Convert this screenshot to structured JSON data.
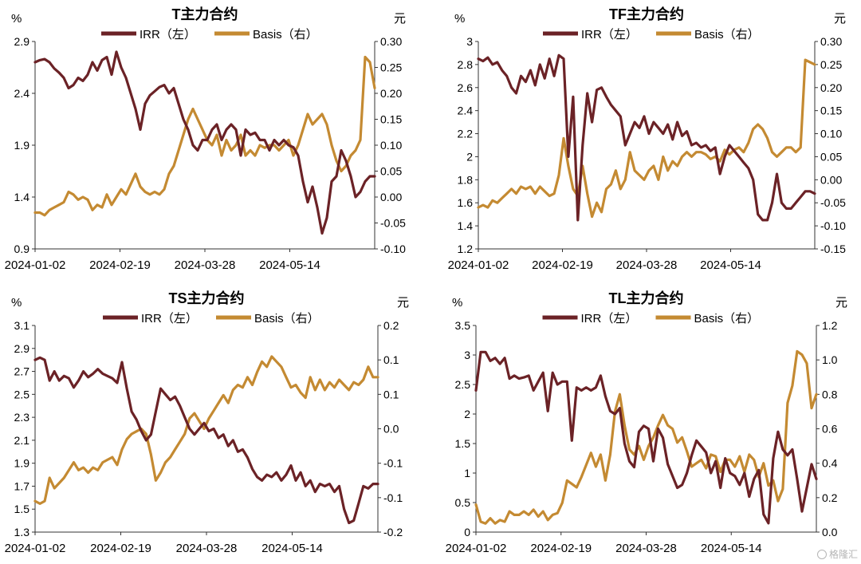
{
  "colors": {
    "irr": "#6b2226",
    "basis": "#c48a32",
    "axis": "#333333",
    "text": "#000000"
  },
  "watermark": "格隆汇",
  "chart_data": [
    {
      "type": "line",
      "title": "T主力合约",
      "left_unit": "%",
      "right_unit": "元",
      "x_tick_labels": [
        "2024-01-02",
        "2024-02-19",
        "2024-03-28",
        "2024-05-14"
      ],
      "y_left_ticks": [
        "0.9",
        "1.4",
        "1.9",
        "2.4",
        "2.9"
      ],
      "y_left_range": [
        0.9,
        2.9
      ],
      "y_right_ticks": [
        "-0.10",
        "-0.05",
        "0.00",
        "0.05",
        "0.10",
        "0.15",
        "0.20",
        "0.25",
        "0.30"
      ],
      "y_right_range": [
        -0.1,
        0.3
      ],
      "legend": [
        "IRR（左）",
        "Basis（右）"
      ],
      "series": [
        {
          "name": "IRR（左）",
          "axis": "left",
          "values": [
            2.7,
            2.72,
            2.73,
            2.7,
            2.64,
            2.6,
            2.55,
            2.45,
            2.48,
            2.55,
            2.52,
            2.58,
            2.7,
            2.62,
            2.72,
            2.75,
            2.58,
            2.8,
            2.65,
            2.55,
            2.4,
            2.25,
            2.05,
            2.3,
            2.38,
            2.42,
            2.46,
            2.48,
            2.4,
            2.45,
            2.3,
            2.15,
            2.05,
            1.9,
            1.85,
            1.95,
            1.95,
            2.05,
            2.1,
            1.95,
            2.05,
            2.1,
            2.05,
            1.8,
            2.05,
            2.0,
            2.02,
            1.95,
            1.95,
            1.85,
            1.95,
            1.9,
            1.95,
            1.9,
            1.88,
            1.8,
            1.55,
            1.35,
            1.5,
            1.3,
            1.05,
            1.2,
            1.55,
            1.6,
            1.85,
            1.75,
            1.6,
            1.4,
            1.45,
            1.55,
            1.6,
            1.6
          ]
        },
        {
          "name": "Basis（右）",
          "axis": "right",
          "values": [
            -0.03,
            -0.03,
            -0.035,
            -0.025,
            -0.02,
            -0.015,
            -0.01,
            0.01,
            0.005,
            -0.005,
            0.0,
            -0.005,
            -0.025,
            -0.015,
            -0.02,
            0.005,
            -0.015,
            0.0,
            0.015,
            0.005,
            0.025,
            0.045,
            0.02,
            0.01,
            0.005,
            0.01,
            0.005,
            0.015,
            0.045,
            0.06,
            0.09,
            0.12,
            0.15,
            0.17,
            0.15,
            0.13,
            0.11,
            0.1,
            0.12,
            0.08,
            0.11,
            0.09,
            0.1,
            0.12,
            0.08,
            0.09,
            0.08,
            0.1,
            0.095,
            0.1,
            0.1,
            0.09,
            0.1,
            0.11,
            0.08,
            0.1,
            0.13,
            0.16,
            0.14,
            0.15,
            0.16,
            0.14,
            0.1,
            0.07,
            0.05,
            0.06,
            0.08,
            0.09,
            0.11,
            0.27,
            0.26,
            0.21
          ]
        }
      ]
    },
    {
      "type": "line",
      "title": "TF主力合约",
      "left_unit": "%",
      "right_unit": "元",
      "x_tick_labels": [
        "2024-01-02",
        "2024-02-19",
        "2024-03-28",
        "2024-05-14"
      ],
      "y_left_ticks": [
        "1.2",
        "1.4",
        "1.6",
        "1.8",
        "2",
        "2.2",
        "2.4",
        "2.6",
        "2.8",
        "3"
      ],
      "y_left_range": [
        1.2,
        3.0
      ],
      "y_right_ticks": [
        "-0.15",
        "-0.10",
        "-0.05",
        "0.00",
        "0.05",
        "0.10",
        "0.15",
        "0.20",
        "0.25",
        "0.30"
      ],
      "y_right_range": [
        -0.15,
        0.3
      ],
      "legend": [
        "IRR（左）",
        "Basis（右）"
      ],
      "series": [
        {
          "name": "IRR（左）",
          "axis": "left",
          "values": [
            2.85,
            2.83,
            2.86,
            2.8,
            2.82,
            2.75,
            2.7,
            2.6,
            2.55,
            2.7,
            2.65,
            2.75,
            2.62,
            2.8,
            2.68,
            2.85,
            2.7,
            2.88,
            2.85,
            2.0,
            2.52,
            1.45,
            2.1,
            2.55,
            2.3,
            2.58,
            2.6,
            2.52,
            2.45,
            2.4,
            2.35,
            2.1,
            2.2,
            2.3,
            2.25,
            2.35,
            2.2,
            2.3,
            2.25,
            2.2,
            2.28,
            2.15,
            2.3,
            2.18,
            2.22,
            2.1,
            2.12,
            2.08,
            2.1,
            2.05,
            2.08,
            1.85,
            2.0,
            2.1,
            2.05,
            2.0,
            1.95,
            1.9,
            1.8,
            1.5,
            1.45,
            1.45,
            1.6,
            1.85,
            1.6,
            1.55,
            1.55,
            1.6,
            1.65,
            1.7,
            1.7,
            1.68
          ]
        },
        {
          "name": "Basis（右）",
          "axis": "right",
          "values": [
            -0.06,
            -0.055,
            -0.06,
            -0.045,
            -0.05,
            -0.04,
            -0.03,
            -0.02,
            -0.03,
            -0.015,
            -0.02,
            -0.015,
            -0.03,
            -0.015,
            -0.025,
            -0.035,
            -0.03,
            0.01,
            0.09,
            0.03,
            -0.02,
            -0.035,
            0.03,
            -0.03,
            -0.08,
            -0.05,
            -0.07,
            -0.02,
            -0.01,
            0.02,
            -0.02,
            0.0,
            0.06,
            0.02,
            0.01,
            0.0,
            0.02,
            0.03,
            0.0,
            0.05,
            0.02,
            0.04,
            0.03,
            0.05,
            0.06,
            0.05,
            0.06,
            0.06,
            0.055,
            0.045,
            0.05,
            0.04,
            0.065,
            0.055,
            0.065,
            0.07,
            0.06,
            0.08,
            0.11,
            0.12,
            0.11,
            0.09,
            0.06,
            0.05,
            0.06,
            0.07,
            0.07,
            0.06,
            0.07,
            0.26,
            0.255,
            0.25
          ]
        }
      ]
    },
    {
      "type": "line",
      "title": "TS主力合约",
      "left_unit": "%",
      "right_unit": "元",
      "x_tick_labels": [
        "2024-01-02",
        "2024-02-19",
        "2024-03-28",
        "2024-05-14"
      ],
      "y_left_ticks": [
        "1.3",
        "1.5",
        "1.7",
        "1.9",
        "2.1",
        "2.3",
        "2.5",
        "2.7",
        "2.9",
        "3.1"
      ],
      "y_left_range": [
        1.3,
        3.1
      ],
      "y_right_ticks": [
        "-0.2",
        "-0.1",
        "-0.1",
        "0.0",
        "0.1",
        "0.1",
        "0.2"
      ],
      "y_right_range": [
        -0.2,
        0.2
      ],
      "legend": [
        "IRR（左）",
        "Basis（右）"
      ],
      "series": [
        {
          "name": "IRR（左）",
          "axis": "left",
          "values": [
            2.8,
            2.82,
            2.8,
            2.62,
            2.7,
            2.62,
            2.66,
            2.64,
            2.56,
            2.62,
            2.7,
            2.65,
            2.68,
            2.72,
            2.68,
            2.66,
            2.64,
            2.6,
            2.78,
            2.55,
            2.35,
            2.28,
            2.18,
            2.1,
            2.15,
            2.35,
            2.55,
            2.5,
            2.45,
            2.48,
            2.4,
            2.3,
            2.2,
            2.15,
            2.2,
            2.25,
            2.18,
            2.2,
            2.12,
            2.15,
            2.05,
            2.1,
            2.0,
            2.02,
            1.95,
            1.85,
            1.78,
            1.75,
            1.8,
            1.78,
            1.82,
            1.75,
            1.8,
            1.88,
            1.75,
            1.82,
            1.7,
            1.75,
            1.65,
            1.72,
            1.7,
            1.72,
            1.65,
            1.7,
            1.5,
            1.38,
            1.4,
            1.55,
            1.7,
            1.68,
            1.72,
            1.72
          ]
        },
        {
          "name": "Basis（右）",
          "axis": "right",
          "values": [
            -0.14,
            -0.145,
            -0.14,
            -0.095,
            -0.115,
            -0.105,
            -0.095,
            -0.08,
            -0.065,
            -0.08,
            -0.075,
            -0.085,
            -0.075,
            -0.08,
            -0.065,
            -0.06,
            -0.055,
            -0.07,
            -0.04,
            -0.02,
            -0.01,
            -0.005,
            0.0,
            -0.01,
            -0.05,
            -0.1,
            -0.085,
            -0.065,
            -0.055,
            -0.04,
            -0.025,
            -0.01,
            0.02,
            0.03,
            0.015,
            0.0,
            0.02,
            0.035,
            0.05,
            0.065,
            0.05,
            0.075,
            0.085,
            0.08,
            0.1,
            0.085,
            0.11,
            0.13,
            0.12,
            0.14,
            0.13,
            0.12,
            0.1,
            0.08,
            0.085,
            0.07,
            0.06,
            0.1,
            0.075,
            0.095,
            0.075,
            0.09,
            0.08,
            0.095,
            0.085,
            0.075,
            0.09,
            0.085,
            0.095,
            0.12,
            0.1,
            0.1
          ]
        }
      ]
    },
    {
      "type": "line",
      "title": "TL主力合约",
      "left_unit": "%",
      "right_unit": "元",
      "x_tick_labels": [
        "2024-01-02",
        "2024-02-19",
        "2024-03-28",
        "2024-05-14"
      ],
      "y_left_ticks": [
        "0",
        "0.5",
        "1",
        "1.5",
        "2",
        "2.5",
        "3",
        "3.5"
      ],
      "y_left_range": [
        0,
        3.5
      ],
      "y_right_ticks": [
        "0.0",
        "0.2",
        "0.4",
        "0.6",
        "0.8",
        "1.0",
        "1.2"
      ],
      "y_right_range": [
        0,
        1.2
      ],
      "legend": [
        "IRR（左）",
        "Basis（右）"
      ],
      "series": [
        {
          "name": "IRR（左）",
          "axis": "left",
          "values": [
            2.4,
            3.05,
            3.05,
            2.9,
            2.95,
            2.85,
            2.95,
            2.6,
            2.65,
            2.6,
            2.62,
            2.65,
            2.4,
            2.55,
            2.7,
            2.05,
            2.7,
            2.5,
            2.55,
            2.55,
            1.55,
            2.45,
            2.4,
            2.45,
            2.4,
            2.45,
            2.65,
            2.3,
            2.05,
            2.0,
            2.1,
            1.5,
            1.2,
            1.1,
            1.7,
            1.8,
            1.75,
            1.2,
            1.75,
            1.6,
            1.15,
            0.95,
            0.75,
            0.8,
            1.0,
            1.3,
            1.55,
            1.45,
            1.35,
            1.0,
            1.2,
            0.75,
            1.25,
            1.0,
            0.95,
            0.8,
            1.0,
            0.6,
            0.9,
            1.05,
            0.3,
            0.15,
            1.25,
            1.7,
            1.4,
            1.3,
            1.4,
            0.9,
            0.35,
            0.75,
            1.15,
            0.9
          ]
        },
        {
          "name": "Basis（右）",
          "axis": "right",
          "values": [
            0.16,
            0.06,
            0.05,
            0.08,
            0.05,
            0.07,
            0.06,
            0.12,
            0.1,
            0.1,
            0.12,
            0.1,
            0.13,
            0.09,
            0.12,
            0.07,
            0.1,
            0.11,
            0.17,
            0.3,
            0.28,
            0.26,
            0.32,
            0.39,
            0.46,
            0.38,
            0.45,
            0.3,
            0.45,
            0.7,
            0.8,
            0.62,
            0.48,
            0.45,
            0.5,
            0.42,
            0.5,
            0.55,
            0.62,
            0.68,
            0.62,
            0.6,
            0.52,
            0.55,
            0.47,
            0.38,
            0.4,
            0.42,
            0.37,
            0.45,
            0.44,
            0.35,
            0.42,
            0.42,
            0.38,
            0.44,
            0.35,
            0.45,
            0.42,
            0.32,
            0.4,
            0.27,
            0.3,
            0.18,
            0.25,
            0.75,
            0.85,
            1.05,
            1.03,
            0.98,
            0.72,
            0.8
          ]
        }
      ]
    }
  ]
}
